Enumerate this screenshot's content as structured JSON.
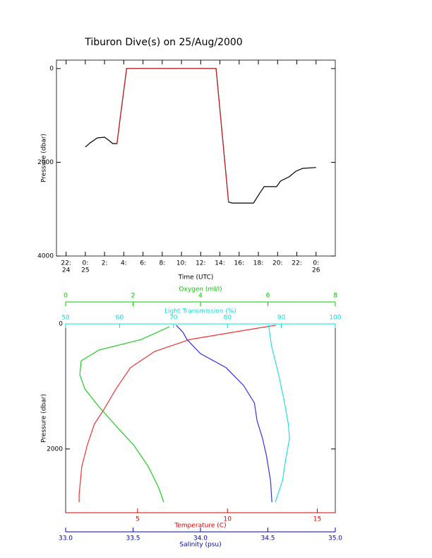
{
  "title": "Tiburon Dive(s) on 25/Aug/2000",
  "chart_data": [
    {
      "type": "line",
      "xlabel": "Time (UTC)",
      "ylabel": "Pressure (dbar)",
      "xlim": [
        -3,
        26
      ],
      "xticks": [
        {
          "value": -2,
          "label": "22:",
          "sublabel": "24"
        },
        {
          "value": 0,
          "label": "0:",
          "sublabel": "25"
        },
        {
          "value": 2,
          "label": "2:"
        },
        {
          "value": 4,
          "label": "4:"
        },
        {
          "value": 6,
          "label": "6:"
        },
        {
          "value": 8,
          "label": "8:"
        },
        {
          "value": 10,
          "label": "10:"
        },
        {
          "value": 12,
          "label": "12:"
        },
        {
          "value": 14,
          "label": "14:"
        },
        {
          "value": 16,
          "label": "16:"
        },
        {
          "value": 18,
          "label": "18:"
        },
        {
          "value": 20,
          "label": "20:"
        },
        {
          "value": 22,
          "label": "22:"
        },
        {
          "value": 24,
          "label": "0:",
          "sublabel": "26"
        }
      ],
      "ylim": [
        4000,
        -180
      ],
      "yticks": [
        0,
        2000,
        4000
      ],
      "x": [
        0,
        0.5,
        1.25,
        2,
        2.5,
        2.85,
        3.3,
        3.6,
        4.3,
        13.6,
        14.9,
        15.3,
        17.5,
        18.1,
        18.6,
        19.9,
        20.3,
        21.2,
        21.9,
        22.6,
        24
      ],
      "series": [
        {
          "color": "#000000",
          "values": [
            1675,
            1585,
            1480,
            1465,
            1540,
            1600,
            1600,
            1100,
            0,
            0,
            2850,
            2870,
            2870,
            2670,
            2520,
            2520,
            2400,
            2310,
            2190,
            2130,
            2110
          ]
        },
        {
          "color": "#cc2222",
          "values": [
            null,
            null,
            null,
            null,
            null,
            null,
            1600,
            1100,
            0,
            0,
            2850,
            null,
            null,
            null,
            null,
            null,
            null,
            null,
            null,
            null,
            null
          ]
        }
      ]
    },
    {
      "type": "line",
      "ylabel": "Pressure (dbar)",
      "ylim": [
        3020,
        0
      ],
      "yticks": [
        0,
        2000
      ],
      "x_axes": [
        {
          "label": "Temperature (C)",
          "color": "#dd0000",
          "position": "bottom",
          "xlim": [
            1,
            16
          ],
          "xticks": [
            5,
            10,
            15
          ]
        },
        {
          "label": "Salinity (psu)",
          "color": "#0000cc",
          "position": "bottom",
          "xlim": [
            33,
            35
          ],
          "xticks": [
            {
              "value": 33,
              "label": "33.0"
            },
            33.5,
            {
              "value": 34,
              "label": "34.0"
            },
            34.5,
            {
              "value": 35,
              "label": "35.0"
            }
          ]
        },
        {
          "label": "Oxygen (ml/l)",
          "color": "#00cc00",
          "position": "top",
          "xlim": [
            0,
            8
          ],
          "xticks": [
            0,
            2,
            4,
            6,
            8
          ]
        },
        {
          "label": "Light Transmission (%)",
          "color": "#00e5e5",
          "position": "top",
          "xlim": [
            50,
            100
          ],
          "xticks": [
            50,
            60,
            70,
            80,
            90,
            100
          ]
        }
      ],
      "series": [
        {
          "color": "#ee3333",
          "x_axis": 0,
          "x": [
            12.7,
            10.3,
            7.9,
            5.95,
            4.6,
            3.8,
            3.1,
            2.6,
            2.2,
            1.9,
            1.75,
            1.75
          ],
          "values": [
            20,
            135,
            250,
            440,
            700,
            1040,
            1380,
            1600,
            1940,
            2280,
            2730,
            2850
          ]
        },
        {
          "color": "#3333dd",
          "x_axis": 1,
          "x": [
            33.82,
            33.87,
            33.9,
            34.0,
            34.19,
            34.32,
            34.4,
            34.42,
            34.46,
            34.49,
            34.52,
            34.53
          ],
          "values": [
            20,
            135,
            250,
            475,
            700,
            985,
            1265,
            1550,
            1830,
            2115,
            2510,
            2850
          ]
        },
        {
          "color": "#22cc22",
          "x_axis": 2,
          "x": [
            3.08,
            2.24,
            0.98,
            0.46,
            0.42,
            0.57,
            0.98,
            1.3,
            1.61,
            2.03,
            2.45,
            2.76,
            2.91
          ],
          "values": [
            45,
            250,
            420,
            590,
            815,
            1040,
            1320,
            1515,
            1700,
            1945,
            2280,
            2620,
            2850
          ]
        },
        {
          "color": "#22e0e0",
          "x_axis": 3,
          "x": [
            87.6,
            88.2,
            89.5,
            90.6,
            91.3,
            91.5,
            90.8,
            90.2,
            89.3,
            88.9
          ],
          "values": [
            20,
            360,
            815,
            1265,
            1605,
            1830,
            2170,
            2510,
            2735,
            2850
          ]
        }
      ]
    }
  ]
}
